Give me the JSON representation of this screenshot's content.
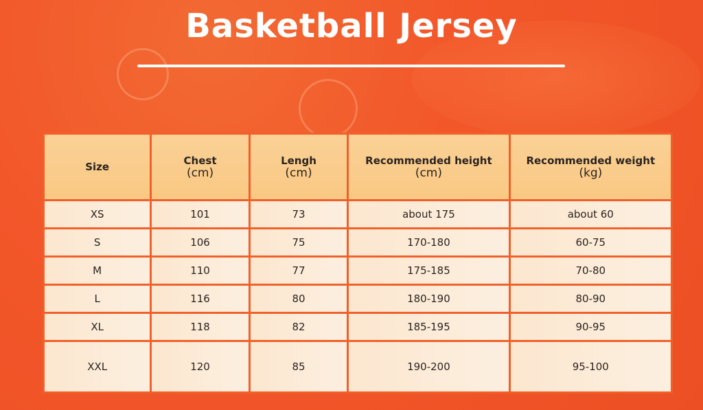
{
  "title": "Basketball Jersey",
  "colors": {
    "background": "#f2572a",
    "header": "#f9c883",
    "row": "#fcebd7",
    "border": "#f0602a"
  },
  "table": {
    "headers": [
      {
        "label": "Size",
        "unit": ""
      },
      {
        "label": "Chest",
        "unit": "(cm)"
      },
      {
        "label": "Lengh",
        "unit": "(cm)"
      },
      {
        "label": "Recommended height",
        "unit": "(cm)"
      },
      {
        "label": "Recommended weight",
        "unit": "(kg)"
      }
    ],
    "rows": [
      [
        "XS",
        "101",
        "73",
        "about 175",
        "about 60"
      ],
      [
        "S",
        "106",
        "75",
        "170-180",
        "60-75"
      ],
      [
        "M",
        "110",
        "77",
        "175-185",
        "70-80"
      ],
      [
        "L",
        "116",
        "80",
        "180-190",
        "80-90"
      ],
      [
        "XL",
        "118",
        "82",
        "185-195",
        "90-95"
      ],
      [
        "XXL",
        "120",
        "85",
        "190-200",
        "95-100"
      ]
    ]
  }
}
